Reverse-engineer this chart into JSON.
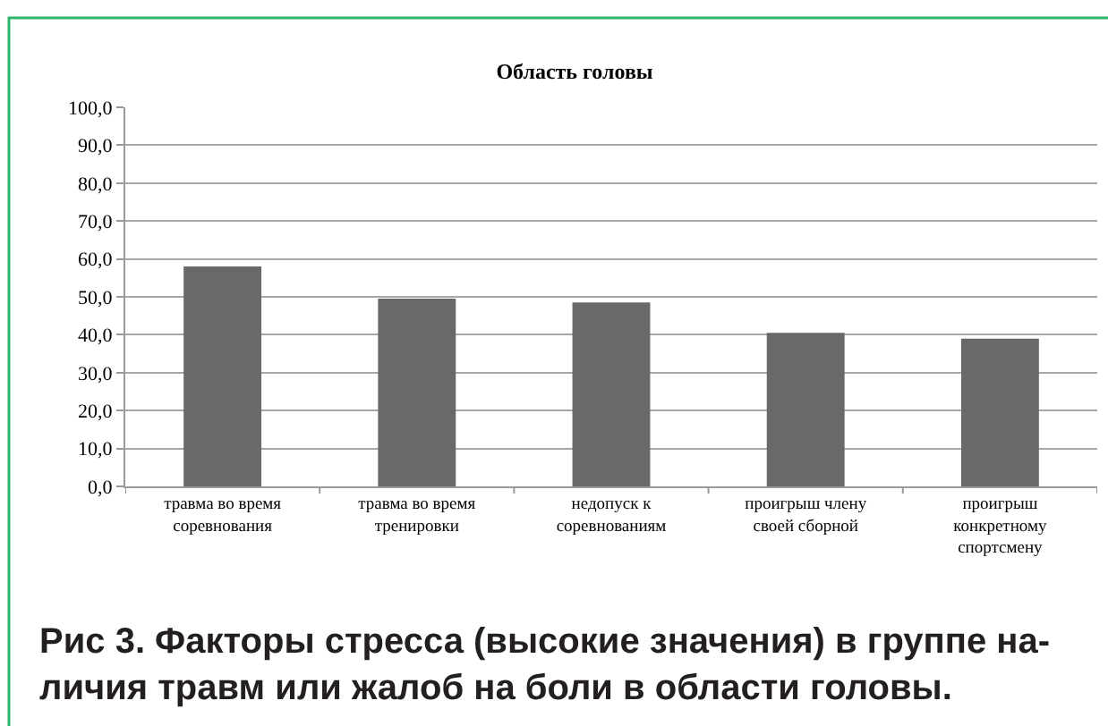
{
  "chart_data": {
    "type": "bar",
    "title": "Область головы",
    "categories": [
      "травма во время\nсоревнования",
      "травма во время\nтренировки",
      "недопуск к\nсоревнованиям",
      "проигрыш члену\nсвоей сборной",
      "проигрыш\nконкретному\nспортсмену"
    ],
    "values": [
      58,
      49.5,
      48.5,
      40.5,
      39
    ],
    "color": "#696969",
    "ylim": [
      0,
      100
    ],
    "yticks": [
      {
        "value": 0,
        "label": "0,0"
      },
      {
        "value": 10,
        "label": "10,0"
      },
      {
        "value": 20,
        "label": "20,0"
      },
      {
        "value": 30,
        "label": "30,0"
      },
      {
        "value": 40,
        "label": "40,0"
      },
      {
        "value": 50,
        "label": "50,0"
      },
      {
        "value": 60,
        "label": "60,0"
      },
      {
        "value": 70,
        "label": "70,0"
      },
      {
        "value": 80,
        "label": "80,0"
      },
      {
        "value": 90,
        "label": "90,0"
      },
      {
        "value": 100,
        "label": "100,0"
      }
    ],
    "grid": "y",
    "annotations": [
      "Рис 3. Факторы стресса (высокие значения) в группе на-\nличия травм или жалоб на боли в области головы."
    ]
  }
}
